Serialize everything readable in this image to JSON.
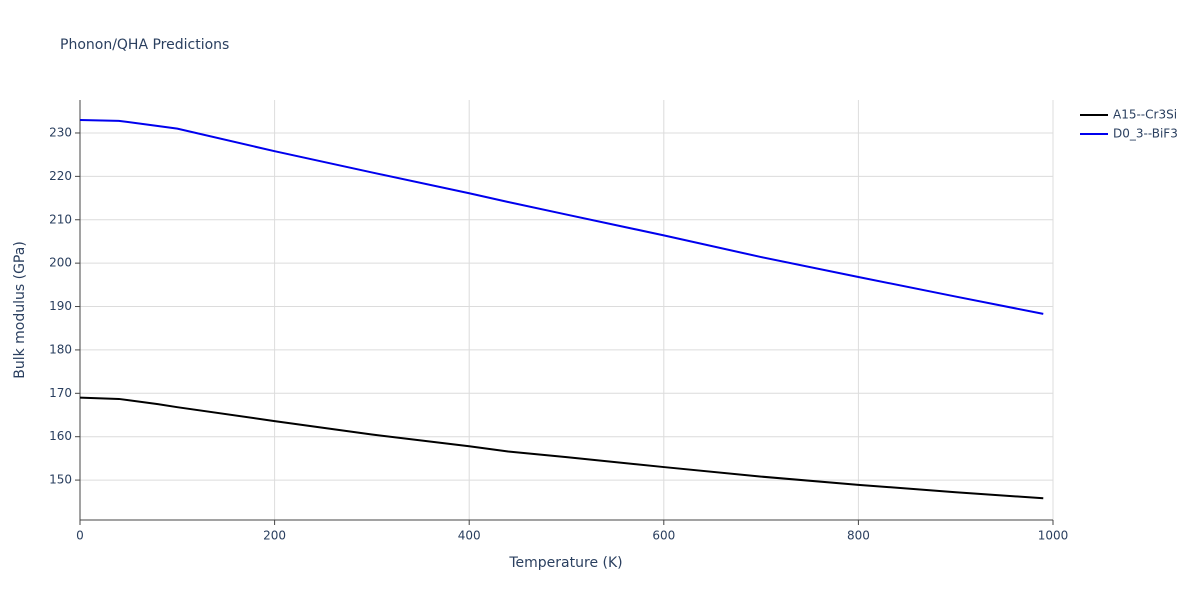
{
  "chart_data": {
    "type": "line",
    "title": "Phonon/QHA Predictions",
    "x_label": "Temperature (K)",
    "y_label": "Bulk modulus (GPa)",
    "x": [
      0,
      40,
      80,
      100,
      200,
      300,
      400,
      440,
      500,
      600,
      700,
      800,
      900,
      990
    ],
    "series": [
      {
        "name": "A15--Cr3Si",
        "color": "#000000",
        "values": [
          169,
          168.7,
          167.5,
          166.8,
          163.6,
          160.5,
          157.8,
          156.6,
          155.3,
          153.0,
          150.8,
          148.9,
          147.2,
          145.8
        ]
      },
      {
        "name": "D0_3--BiF3",
        "color": "#0000ee",
        "values": [
          233,
          232.8,
          231.6,
          231,
          225.8,
          220.9,
          216.1,
          214.1,
          211.2,
          206.4,
          201.4,
          196.8,
          192.3,
          188.3
        ]
      }
    ],
    "xlim": [
      0,
      1000
    ],
    "xticks": [
      0,
      200,
      400,
      600,
      800,
      1000
    ],
    "ylim": [
      140.8,
      237.6
    ],
    "yticks": [
      150,
      160,
      170,
      180,
      190,
      200,
      210,
      220,
      230
    ],
    "grid": true,
    "legend": "right"
  }
}
